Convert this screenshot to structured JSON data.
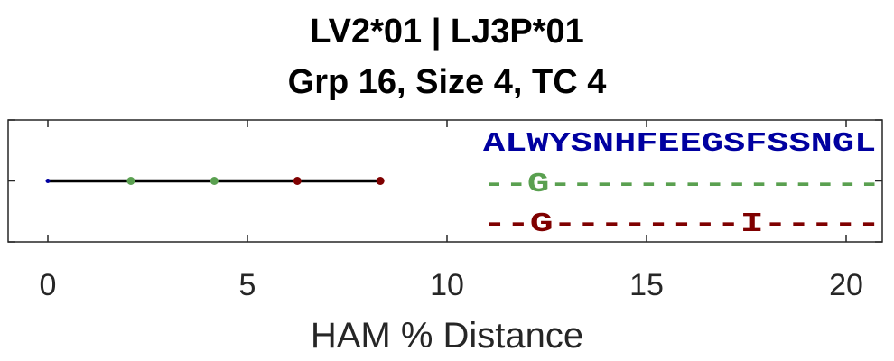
{
  "title_line1": "LV2*01 | LJ3P*01",
  "title_line2": "Grp 16, Size 4, TC 4",
  "chart_data": {
    "type": "scatter",
    "title": "LV2*01 | LJ3P*01 Grp 16, Size 4, TC 4",
    "xlabel": "HAM % Distance",
    "ylabel": "",
    "xlim": [
      0,
      21
    ],
    "xticks": [
      0,
      5,
      10,
      15,
      20
    ],
    "grid": false,
    "line": {
      "x_start": 0,
      "x_end": 8.33,
      "color": "#000000"
    },
    "points": [
      {
        "x": 0,
        "color": "#0000a0"
      },
      {
        "x": 2.08,
        "color": "#5aa050"
      },
      {
        "x": 4.17,
        "color": "#5aa050"
      },
      {
        "x": 6.25,
        "color": "#7f0000"
      },
      {
        "x": 8.33,
        "color": "#7f0000"
      }
    ],
    "sequences": [
      {
        "text": "ALWYSNHFEEGSFSSNGL",
        "color": "#0000a0"
      },
      {
        "text": "--G---------------",
        "color": "#5aa050"
      },
      {
        "text": "--G--------I-----",
        "color": "#7f0000"
      }
    ]
  }
}
